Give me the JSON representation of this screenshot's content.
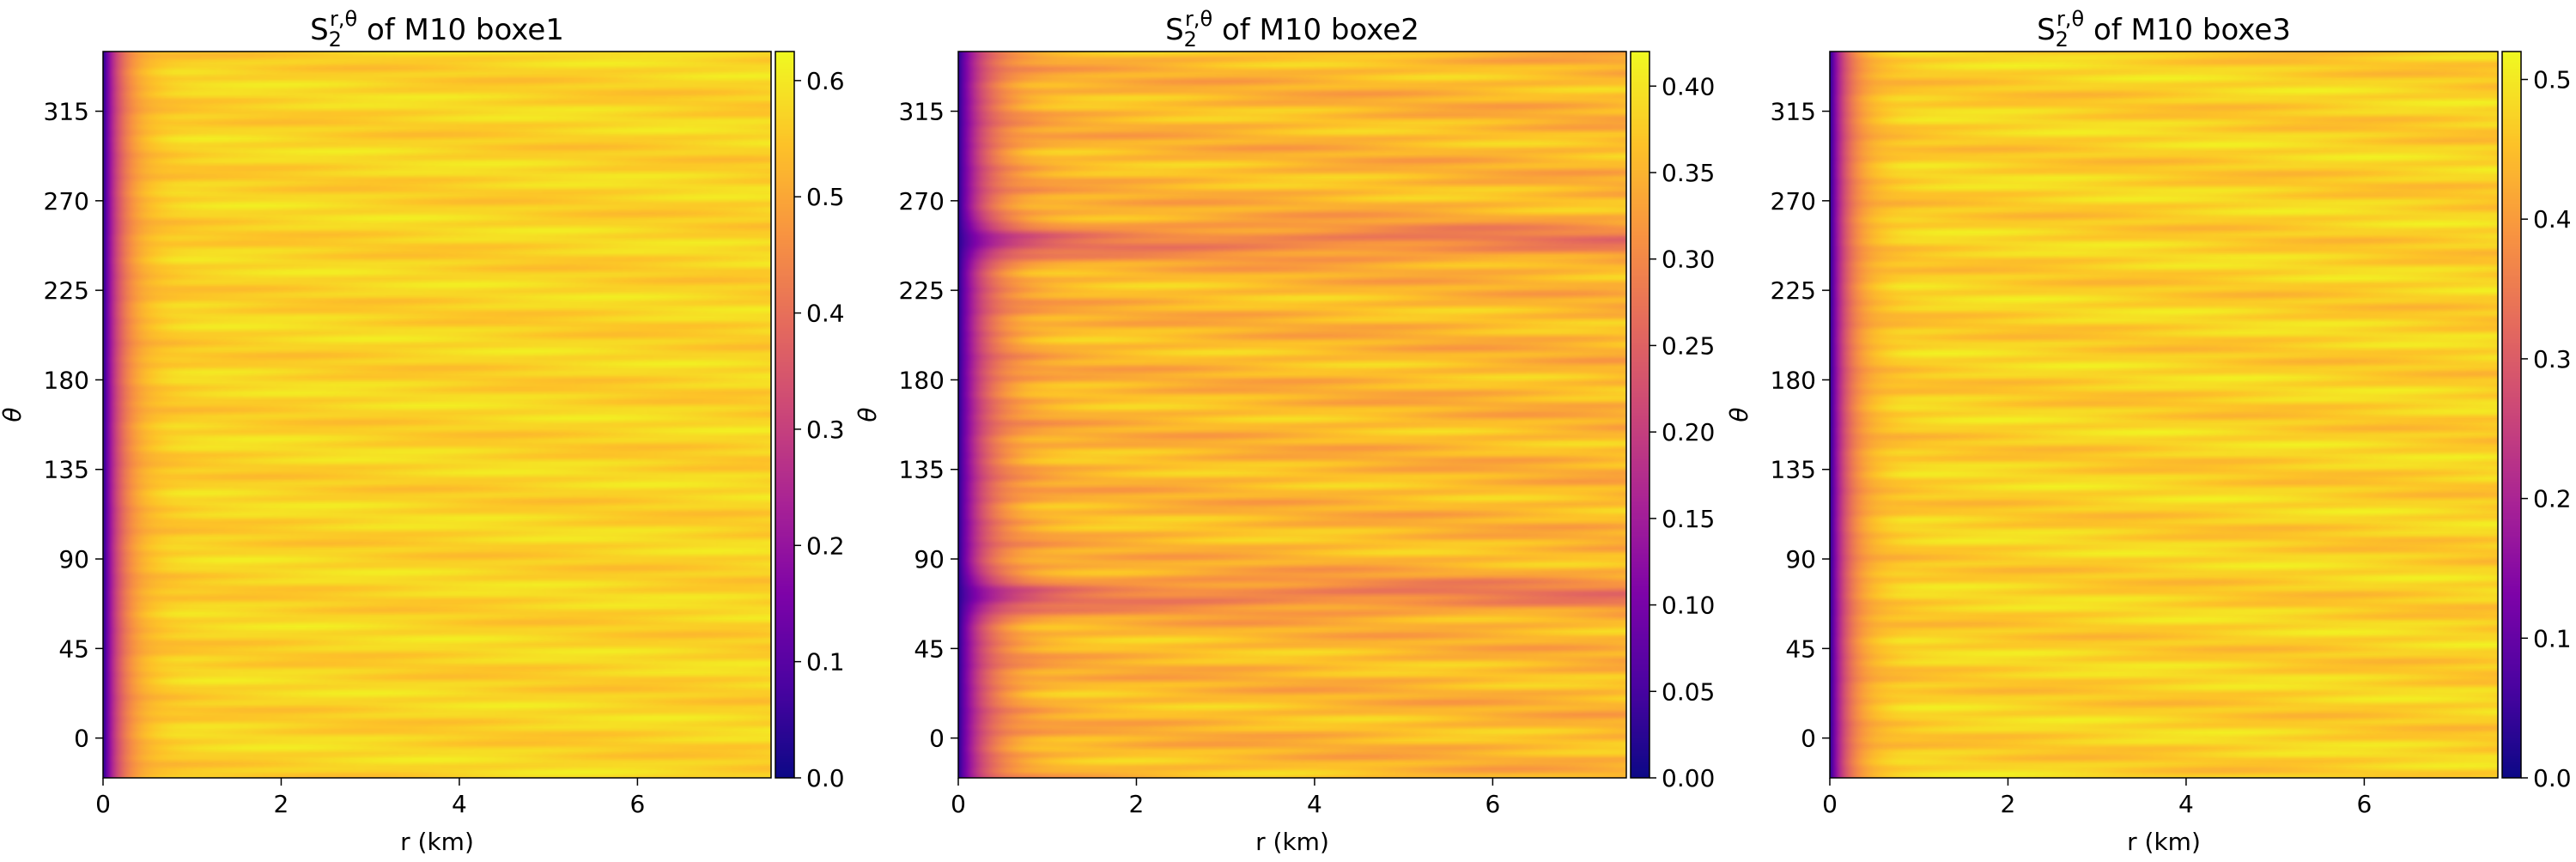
{
  "chart_data": [
    {
      "type": "heatmap",
      "title_main": "S",
      "title_sub": "2",
      "title_sup": "r,θ",
      "title_rest": " of M10 boxe1",
      "xlabel": "r (km)",
      "ylabel": "θ",
      "xlim": [
        0,
        7.5
      ],
      "ylim": [
        -20,
        345
      ],
      "xticks": [
        0,
        2,
        4,
        6
      ],
      "yticks": [
        0,
        45,
        90,
        135,
        180,
        225,
        270,
        315
      ],
      "colormap": "plasma",
      "colorbar": {
        "range": [
          0,
          0.625
        ],
        "ticks": [
          0,
          0.1,
          0.2,
          0.3,
          0.4,
          0.5,
          0.6
        ],
        "tick_labels": [
          "0.0",
          "0.1",
          "0.2",
          "0.3",
          "0.4",
          "0.5",
          "0.6"
        ]
      },
      "field": {
        "edge_value": 0.02,
        "saturation_value": 0.57,
        "rise_length_km": 0.6,
        "dips": []
      }
    },
    {
      "type": "heatmap",
      "title_main": "S",
      "title_sub": "2",
      "title_sup": "r,θ",
      "title_rest": " of M10 boxe2",
      "xlabel": "r (km)",
      "ylabel": "θ",
      "xlim": [
        0,
        7.5
      ],
      "ylim": [
        -20,
        345
      ],
      "xticks": [
        0,
        2,
        4,
        6
      ],
      "yticks": [
        0,
        45,
        90,
        135,
        180,
        225,
        270,
        315
      ],
      "colormap": "plasma",
      "colorbar": {
        "range": [
          0,
          0.42
        ],
        "ticks": [
          0,
          0.05,
          0.1,
          0.15,
          0.2,
          0.25,
          0.3,
          0.35,
          0.4
        ],
        "tick_labels": [
          "0.00",
          "0.05",
          "0.10",
          "0.15",
          "0.20",
          "0.25",
          "0.30",
          "0.35",
          "0.40"
        ]
      },
      "field": {
        "edge_value": 0.02,
        "saturation_value": 0.355,
        "rise_length_km": 0.9,
        "dips": [
          {
            "theta": 72,
            "depth": 0.07
          },
          {
            "theta": 250,
            "depth": 0.07
          }
        ]
      }
    },
    {
      "type": "heatmap",
      "title_main": "S",
      "title_sub": "2",
      "title_sup": "r,θ",
      "title_rest": " of M10 boxe3",
      "xlabel": "r (km)",
      "ylabel": "θ",
      "xlim": [
        0,
        7.5
      ],
      "ylim": [
        -20,
        345
      ],
      "xticks": [
        0,
        2,
        4,
        6
      ],
      "yticks": [
        0,
        45,
        90,
        135,
        180,
        225,
        270,
        315
      ],
      "colormap": "plasma",
      "colorbar": {
        "range": [
          0,
          0.52
        ],
        "ticks": [
          0,
          0.1,
          0.2,
          0.3,
          0.4,
          0.5
        ],
        "tick_labels": [
          "0.0",
          "0.1",
          "0.2",
          "0.3",
          "0.4",
          "0.5"
        ]
      },
      "field": {
        "edge_value": 0.02,
        "saturation_value": 0.47,
        "rise_length_km": 0.6,
        "dips": []
      }
    }
  ]
}
